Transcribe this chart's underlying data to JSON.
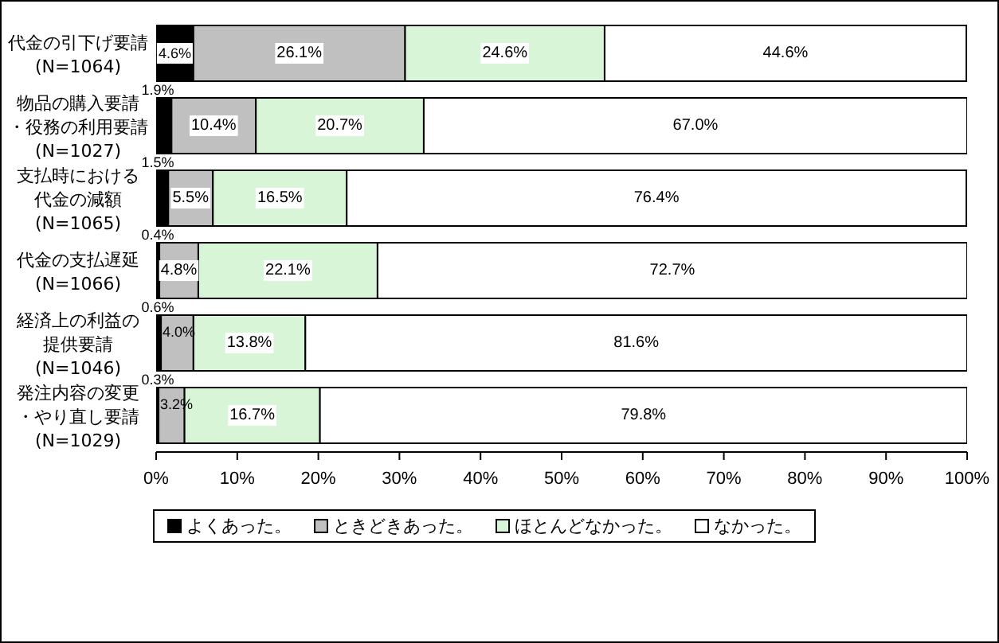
{
  "chart_data": {
    "type": "bar",
    "orientation": "horizontal",
    "stacked": true,
    "categories": [
      "代金の引下げ要請 (N=1064)",
      "物品の購入要請・役務の利用要請 (N=1027)",
      "支払時における代金の減額 (N=1065)",
      "代金の支払遅延 (N=1066)",
      "経済上の利益の提供要請 (N=1046)",
      "発注内容の変更・やり直し要請 (N=1029)"
    ],
    "series": [
      {
        "name": "よくあった。",
        "color": "#000000",
        "values": [
          4.6,
          1.9,
          1.5,
          0.4,
          0.6,
          0.3
        ],
        "value_labels": [
          "4.6%",
          "1.9%",
          "1.5%",
          "0.4%",
          "0.6%",
          "0.3%"
        ]
      },
      {
        "name": "ときどきあった。",
        "color": "#c0c0c0",
        "values": [
          26.1,
          10.4,
          5.5,
          4.8,
          4.0,
          3.2
        ],
        "value_labels": [
          "26.1%",
          "10.4%",
          "5.5%",
          "4.8%",
          "4.0%",
          "3.2%"
        ]
      },
      {
        "name": "ほとんどなかった。",
        "color": "#d8f5d8",
        "values": [
          24.6,
          20.7,
          16.5,
          22.1,
          13.8,
          16.7
        ],
        "value_labels": [
          "24.6%",
          "20.7%",
          "16.5%",
          "22.1%",
          "13.8%",
          "16.7%"
        ]
      },
      {
        "name": "なかった。",
        "color": "#ffffff",
        "values": [
          44.6,
          67.0,
          76.4,
          72.7,
          81.6,
          79.8
        ],
        "value_labels": [
          "44.6%",
          "67.0%",
          "76.4%",
          "72.7%",
          "81.6%",
          "79.8%"
        ]
      }
    ],
    "xlim": [
      0,
      100
    ],
    "xticks": [
      {
        "value": 0,
        "label": "0%"
      },
      {
        "value": 10,
        "label": "10%"
      },
      {
        "value": 20,
        "label": "20%"
      },
      {
        "value": 30,
        "label": "30%"
      },
      {
        "value": 40,
        "label": "40%"
      },
      {
        "value": 50,
        "label": "50%"
      },
      {
        "value": 60,
        "label": "60%"
      },
      {
        "value": 70,
        "label": "70%"
      },
      {
        "value": 80,
        "label": "80%"
      },
      {
        "value": 90,
        "label": "90%"
      },
      {
        "value": 100,
        "label": "100%"
      }
    ],
    "legend": "bottom"
  }
}
